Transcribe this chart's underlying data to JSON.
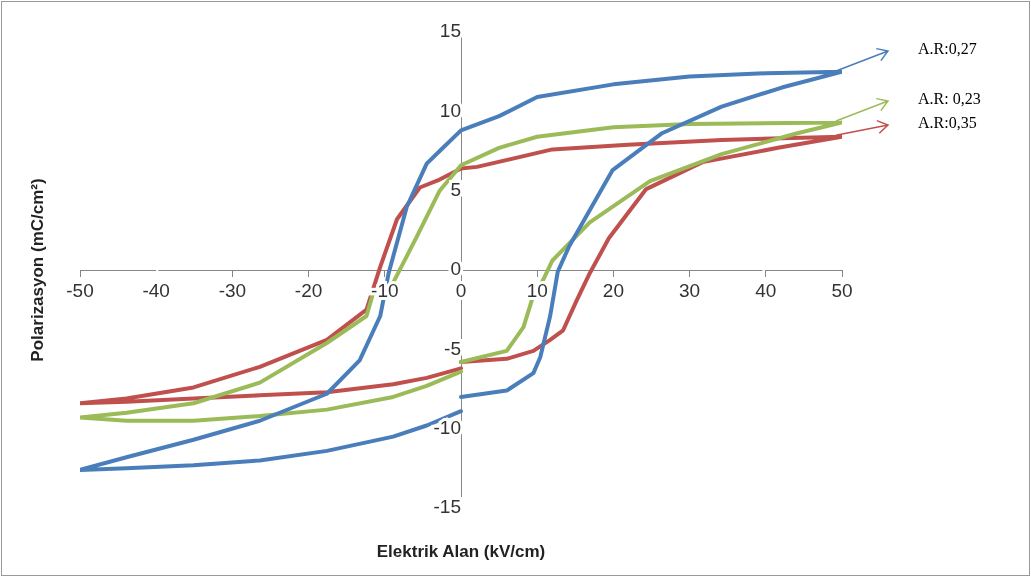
{
  "chart_data": {
    "type": "line",
    "xlabel": "Elektrik Alan (kV/cm)",
    "ylabel": "Polarizasyon (mC/cm²)",
    "xlim": [
      -50,
      50
    ],
    "xticks": [
      -50,
      -40,
      -30,
      -20,
      -10,
      0,
      10,
      20,
      30,
      40,
      50
    ],
    "ylim": [
      -15,
      15
    ],
    "yticks": [
      -15,
      -10,
      -5,
      0,
      5,
      10,
      15
    ],
    "marker": "none",
    "line_style": "solid",
    "legend": "right",
    "series": [
      {
        "name": "A.R:0,27",
        "color": "#4a7ebb",
        "x": [
          50,
          40,
          30,
          20,
          10,
          5,
          0,
          -2.8,
          -4.5,
          -7.1,
          -9.5,
          -10.6,
          -13.3,
          -17.6,
          -26.4,
          -35.1,
          -43.9,
          -50,
          -43.9,
          -35.1,
          -26.4,
          -17.6,
          -8.9,
          -4.5,
          0,
          null,
          0,
          6,
          9.5,
          10.4,
          11.7,
          12.7,
          14.2,
          19.9,
          26.3,
          34.2,
          42.1,
          50
        ],
        "values": [
          12.5,
          12.4,
          12.2,
          11.7,
          10.9,
          9.7,
          8.8,
          7.5,
          6.7,
          4,
          -0.2,
          -2.9,
          -5.7,
          -7.8,
          -9.5,
          -10.7,
          -11.8,
          -12.6,
          -12.5,
          -12.3,
          -12,
          -11.4,
          -10.5,
          -9.8,
          -8.9,
          null,
          -8,
          -7.6,
          -6.5,
          -5.5,
          -2.9,
          -0.1,
          1.5,
          6.3,
          8.6,
          10.3,
          11.5,
          12.5
        ]
      },
      {
        "name": "A.R: 0,23",
        "color": "#9bbb59",
        "x": [
          50,
          30,
          20,
          10,
          5,
          0,
          -2.8,
          -5.8,
          -8.9,
          -11.5,
          -12.4,
          -17.6,
          -26.4,
          -35.1,
          -43.9,
          -50,
          -43.9,
          -35.1,
          -26.4,
          -17.6,
          -8.9,
          -4.5,
          0,
          null,
          0,
          6,
          8.2,
          9.3,
          10.8,
          12,
          16.9,
          24.8,
          34.2,
          44,
          50
        ],
        "values": [
          9.3,
          9.2,
          9,
          8.4,
          7.7,
          6.6,
          5,
          2.1,
          -0.8,
          -1.4,
          -2.9,
          -4.6,
          -7.1,
          -8.4,
          -9,
          -9.3,
          -9.5,
          -9.5,
          -9.2,
          -8.8,
          -8,
          -7.3,
          -6.4,
          null,
          -5.8,
          -5.1,
          -3.6,
          -1.9,
          -0.6,
          0.6,
          3,
          5.6,
          7.3,
          8.6,
          9.3
        ]
      },
      {
        "name": "A.R:0,35",
        "color": "#c0504d",
        "x": [
          50,
          34.2,
          21.9,
          12,
          2.1,
          0,
          -2.8,
          -5.4,
          -8.4,
          -10.6,
          -12.4,
          -17.6,
          -26.4,
          -35.1,
          -43.9,
          -50,
          -43.9,
          -35.1,
          -26.4,
          -17.6,
          -8.9,
          -4.5,
          0,
          null,
          0,
          6,
          9.5,
          11.7,
          13.4,
          15.2,
          16.9,
          19.4,
          24.3,
          31.7,
          41.6,
          50
        ],
        "values": [
          8.4,
          8.2,
          7.9,
          7.6,
          6.5,
          6.4,
          5.7,
          5.2,
          3.2,
          0.2,
          -2.5,
          -4.4,
          -6.1,
          -7.4,
          -8.1,
          -8.4,
          -8.3,
          -8.1,
          -7.9,
          -7.7,
          -7.2,
          -6.8,
          -6.2,
          null,
          -5.8,
          -5.6,
          -5.1,
          -4.4,
          -3.8,
          -1.9,
          -0.2,
          2,
          5.1,
          6.8,
          7.7,
          8.4
        ]
      }
    ]
  }
}
